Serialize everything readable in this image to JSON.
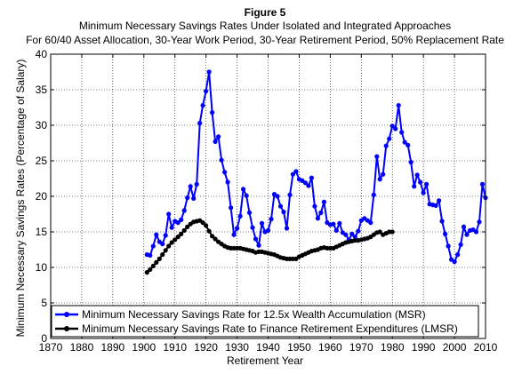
{
  "figure_label": "Figure 5",
  "chart_data": {
    "type": "line",
    "title": "Minimum Necessary Savings Rates Under Isolated and Integrated Approaches",
    "subtitle": "For 60/40 Asset Allocation, 30-Year Work Period, 30-Year Retirement Period, 50% Replacement Rate",
    "xlabel": "Retirement Year",
    "ylabel": "Minimum Necessary Savings Rates (Percentage of Salary)",
    "xlim": [
      1870,
      2010
    ],
    "ylim": [
      0,
      40
    ],
    "xticks": [
      1870,
      1880,
      1890,
      1900,
      1910,
      1920,
      1930,
      1940,
      1950,
      1960,
      1970,
      1980,
      1990,
      2000,
      2010
    ],
    "yticks": [
      0,
      5,
      10,
      15,
      20,
      25,
      30,
      35,
      40
    ],
    "grid": true,
    "legend_position": "bottom",
    "series": [
      {
        "name": "Minimum Necessary Savings Rate for 12.5x Wealth Accumulation (MSR)",
        "color": "#0000ff",
        "marker": "circle",
        "x": [
          1901,
          1902,
          1903,
          1904,
          1905,
          1906,
          1907,
          1908,
          1909,
          1910,
          1911,
          1912,
          1913,
          1914,
          1915,
          1916,
          1917,
          1918,
          1919,
          1920,
          1921,
          1922,
          1923,
          1924,
          1925,
          1926,
          1927,
          1928,
          1929,
          1930,
          1931,
          1932,
          1933,
          1934,
          1935,
          1936,
          1937,
          1938,
          1939,
          1940,
          1941,
          1942,
          1943,
          1944,
          1945,
          1946,
          1947,
          1948,
          1949,
          1950,
          1951,
          1952,
          1953,
          1954,
          1955,
          1956,
          1957,
          1958,
          1959,
          1960,
          1961,
          1962,
          1963,
          1964,
          1965,
          1966,
          1967,
          1968,
          1969,
          1970,
          1971,
          1972,
          1973,
          1974,
          1975,
          1976,
          1977,
          1978,
          1979,
          1980,
          1981,
          1982,
          1983,
          1984,
          1985,
          1986,
          1987,
          1988,
          1989,
          1990,
          1991,
          1992,
          1993,
          1994,
          1995,
          1996,
          1997,
          1998,
          1999,
          2000,
          2001,
          2002,
          2003,
          2004,
          2005,
          2006,
          2007,
          2008,
          2009,
          2010
        ],
        "y": [
          11.8,
          11.7,
          13.0,
          14.6,
          13.6,
          13.3,
          14.5,
          17.5,
          15.6,
          16.5,
          16.3,
          16.7,
          18.0,
          19.8,
          21.4,
          19.7,
          21.7,
          30.3,
          32.8,
          34.8,
          37.5,
          31.8,
          27.7,
          28.4,
          25.1,
          23.4,
          22.0,
          18.4,
          14.6,
          15.5,
          17.2,
          21.0,
          20.1,
          17.7,
          15.6,
          14.0,
          13.1,
          16.2,
          15.0,
          15.2,
          16.8,
          20.3,
          20.0,
          18.6,
          17.8,
          15.5,
          20.2,
          23.1,
          23.5,
          22.4,
          22.2,
          21.9,
          21.5,
          22.6,
          18.6,
          16.9,
          17.7,
          19.2,
          16.3,
          16.0,
          16.1,
          15.2,
          16.2,
          14.9,
          14.6,
          13.9,
          14.7,
          14.3,
          15.1,
          16.6,
          16.9,
          16.6,
          16.3,
          20.2,
          25.6,
          22.4,
          23.1,
          27.1,
          28.1,
          29.9,
          29.5,
          32.8,
          29.0,
          27.6,
          27.2,
          24.8,
          21.4,
          23.0,
          22.0,
          20.5,
          21.7,
          18.9,
          18.8,
          18.7,
          19.4,
          16.5,
          14.7,
          13.0,
          11.1,
          10.8,
          11.8,
          13.2,
          15.7,
          14.6,
          15.2,
          15.3,
          15.0,
          16.4,
          21.7,
          19.8
        ]
      },
      {
        "name": "Minimum Necessary Savings Rate to Finance Retirement Expenditures (LMSR)",
        "color": "#000000",
        "marker": "circle",
        "x": [
          1901,
          1902,
          1903,
          1904,
          1905,
          1906,
          1907,
          1908,
          1909,
          1910,
          1911,
          1912,
          1913,
          1914,
          1915,
          1916,
          1917,
          1918,
          1919,
          1920,
          1921,
          1922,
          1923,
          1924,
          1925,
          1926,
          1927,
          1928,
          1929,
          1930,
          1931,
          1932,
          1933,
          1934,
          1935,
          1936,
          1937,
          1938,
          1939,
          1940,
          1941,
          1942,
          1943,
          1944,
          1945,
          1946,
          1947,
          1948,
          1949,
          1950,
          1951,
          1952,
          1953,
          1954,
          1955,
          1956,
          1957,
          1958,
          1959,
          1960,
          1961,
          1962,
          1963,
          1964,
          1965,
          1966,
          1967,
          1968,
          1969,
          1970,
          1971,
          1972,
          1973,
          1974,
          1975,
          1976,
          1977,
          1978,
          1979,
          1980
        ],
        "y": [
          9.3,
          9.7,
          10.2,
          10.7,
          11.2,
          11.8,
          12.4,
          13.0,
          13.5,
          13.9,
          14.3,
          14.7,
          15.2,
          15.7,
          16.1,
          16.4,
          16.5,
          16.6,
          16.3,
          15.9,
          15.1,
          14.4,
          14.0,
          13.6,
          13.3,
          13.0,
          12.8,
          12.7,
          12.7,
          12.7,
          12.7,
          12.6,
          12.5,
          12.4,
          12.3,
          12.1,
          12.2,
          12.2,
          12.1,
          12.0,
          11.9,
          11.8,
          11.6,
          11.4,
          11.3,
          11.2,
          11.2,
          11.2,
          11.2,
          11.5,
          11.7,
          11.9,
          12.1,
          12.3,
          12.4,
          12.5,
          12.7,
          12.8,
          12.7,
          12.7,
          12.7,
          12.9,
          13.1,
          13.3,
          13.5,
          13.6,
          13.7,
          13.8,
          13.8,
          13.9,
          14.0,
          14.1,
          14.3,
          14.6,
          14.9,
          15.0,
          14.6,
          14.8,
          15.0,
          15.0
        ]
      }
    ]
  }
}
